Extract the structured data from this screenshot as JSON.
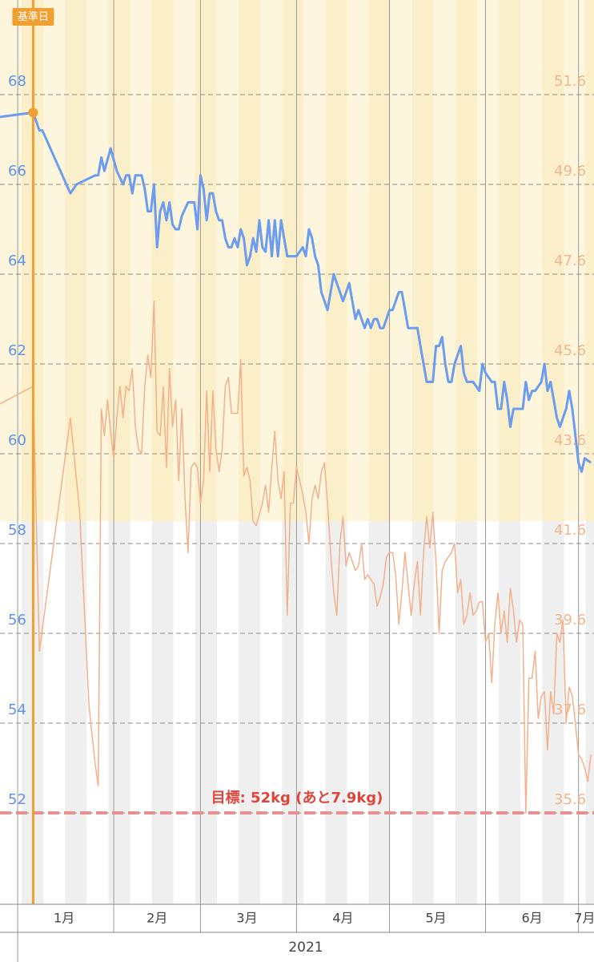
{
  "chart_data": {
    "type": "line",
    "ylim": [
      50,
      70
    ],
    "yticks": [
      52,
      54,
      56,
      58,
      60,
      62,
      64,
      66,
      68
    ],
    "y2lim": [
      33.6,
      53.6
    ],
    "y2ticks": [
      35.6,
      37.6,
      39.6,
      41.6,
      43.6,
      45.6,
      47.6,
      49.6,
      51.6
    ],
    "xlim": [
      -5.7,
      186
    ],
    "xticks": [
      {
        "value": 15,
        "label": "1月"
      },
      {
        "value": 45,
        "label": "2月"
      },
      {
        "value": 74,
        "label": "3月"
      },
      {
        "value": 105,
        "label": "4月"
      },
      {
        "value": 135,
        "label": "5月"
      },
      {
        "value": 166,
        "label": "6月"
      },
      {
        "value": 183,
        "label": "7月"
      }
    ],
    "month_lines": [
      0,
      31,
      59,
      90,
      120,
      151,
      181
    ],
    "x_group_label": "2021",
    "grid": true,
    "highlight_ylim": [
      58.5,
      70
    ],
    "reference": {
      "x": 5,
      "label": "基準日"
    },
    "goal": {
      "value": 52,
      "label": "目標: 52kg (あと7.9kg)"
    },
    "series": [
      {
        "color": "#6b9cf0",
        "axis": "y",
        "x": [
          -6,
          5,
          7,
          8,
          17,
          19,
          25,
          26,
          27,
          28,
          30,
          32,
          34,
          35,
          36,
          37,
          38,
          40,
          41,
          42,
          43,
          44,
          45,
          46,
          47,
          48,
          49,
          50,
          51,
          52,
          53,
          55,
          56,
          57,
          58,
          59,
          60,
          61,
          62,
          63,
          64,
          65,
          66,
          67,
          68,
          69,
          70,
          71,
          72,
          73,
          74,
          75,
          76,
          77,
          78,
          79,
          80,
          81,
          82,
          83,
          84,
          85,
          86,
          87,
          88,
          89,
          90,
          92,
          93,
          94,
          95,
          96,
          97,
          98,
          99,
          100,
          101,
          102,
          103,
          104,
          105,
          107,
          108,
          109,
          110,
          111,
          112,
          113,
          114,
          115,
          116,
          117,
          118,
          119,
          120,
          121,
          122,
          123,
          124,
          126,
          127,
          128,
          129,
          130,
          131,
          132,
          133,
          134,
          135,
          136,
          137,
          138,
          139,
          140,
          141,
          142,
          143,
          144,
          145,
          146,
          147,
          149,
          150,
          151,
          153,
          154,
          155,
          156,
          157,
          158,
          159,
          160,
          162,
          163,
          164,
          165,
          166,
          167,
          169,
          170,
          171,
          172,
          174,
          175,
          176,
          177,
          178,
          179,
          180,
          181,
          182,
          183,
          185
        ],
        "values": [
          67.5,
          67.6,
          67.2,
          67.2,
          65.8,
          66.0,
          66.2,
          66.2,
          66.6,
          66.3,
          66.8,
          66.3,
          66.0,
          66.2,
          66.2,
          65.8,
          66.2,
          66.2,
          65.9,
          65.4,
          65.4,
          66.0,
          64.6,
          65.4,
          65.6,
          65.2,
          65.6,
          65.1,
          65.0,
          65.0,
          65.3,
          65.6,
          65.6,
          65.6,
          65.0,
          66.2,
          65.9,
          65.2,
          65.8,
          65.8,
          65.4,
          65.2,
          65.2,
          64.8,
          64.6,
          64.6,
          64.8,
          64.6,
          65.0,
          64.8,
          64.2,
          64.4,
          64.8,
          64.5,
          65.2,
          64.6,
          64.5,
          65.2,
          64.4,
          65.2,
          64.4,
          65.2,
          64.8,
          64.4,
          64.4,
          64.4,
          64.4,
          64.6,
          64.4,
          65.0,
          64.8,
          64.4,
          64.2,
          63.6,
          63.4,
          63.2,
          63.6,
          64.0,
          63.8,
          63.6,
          63.4,
          63.8,
          63.4,
          63.0,
          63.2,
          63.0,
          62.8,
          63.0,
          62.8,
          63.0,
          63.0,
          62.8,
          62.8,
          63.0,
          63.2,
          63.2,
          63.4,
          63.6,
          63.6,
          62.8,
          62.8,
          62.8,
          62.8,
          62.4,
          62.0,
          61.6,
          61.6,
          61.6,
          62.4,
          62.4,
          62.6,
          62.0,
          61.6,
          61.6,
          62.0,
          62.2,
          62.4,
          61.8,
          61.6,
          61.6,
          61.6,
          61.4,
          62.0,
          61.8,
          61.6,
          61.6,
          61.0,
          61.0,
          61.6,
          61.2,
          60.6,
          61.0,
          61.0,
          61.0,
          61.6,
          61.2,
          61.4,
          61.4,
          61.6,
          62.0,
          61.4,
          61.6,
          60.8,
          60.6,
          60.8,
          61.0,
          61.4,
          61.0,
          60.4,
          59.8,
          59.6,
          59.9,
          59.8
        ]
      },
      {
        "color": "#f4b08a",
        "axis": "y2",
        "x": [
          -6,
          5,
          7,
          17,
          20,
          23,
          25,
          26,
          27,
          28,
          29,
          30,
          31,
          32,
          33,
          34,
          35,
          36,
          37,
          38,
          39,
          40,
          41,
          42,
          43,
          44,
          45,
          46,
          47,
          48,
          49,
          50,
          51,
          52,
          53,
          54,
          55,
          56,
          57,
          58,
          59,
          60,
          61,
          62,
          63,
          64,
          65,
          66,
          67,
          68,
          69,
          70,
          71,
          72,
          73,
          74,
          75,
          76,
          77,
          79,
          80,
          81,
          82,
          83,
          84,
          85,
          86,
          87,
          88,
          89,
          90,
          91,
          92,
          93,
          94,
          95,
          96,
          97,
          98,
          99,
          100,
          101,
          102,
          103,
          104,
          105,
          106,
          107,
          109,
          110,
          111,
          112,
          113,
          114,
          115,
          116,
          117,
          118,
          119,
          120,
          121,
          122,
          123,
          124,
          125,
          126,
          127,
          128,
          129,
          130,
          131,
          132,
          133,
          134,
          135,
          136,
          137,
          138,
          140,
          141,
          142,
          143,
          144,
          145,
          146,
          147,
          148,
          149,
          150,
          151,
          152,
          153,
          154,
          155,
          156,
          157,
          158,
          159,
          160,
          161,
          162,
          163,
          164,
          165,
          166,
          167,
          168,
          169,
          170,
          171,
          172,
          173,
          174,
          175,
          176,
          177,
          178,
          179,
          180,
          181,
          182,
          183,
          184,
          185
        ],
        "values": [
          44.7,
          45.1,
          39.2,
          44.4,
          42.3,
          38.0,
          36.7,
          36.2,
          44.6,
          44.0,
          44.8,
          44.1,
          43.5,
          44.4,
          45.1,
          44.4,
          45.1,
          45.0,
          45.5,
          44.2,
          43.7,
          43.6,
          45.1,
          45.8,
          45.3,
          47.0,
          44.1,
          44.0,
          45.1,
          43.3,
          45.5,
          44.2,
          44.8,
          43.0,
          44.6,
          42.6,
          41.4,
          43.3,
          43.4,
          43.3,
          42.5,
          43.0,
          45.0,
          43.2,
          45.0,
          43.7,
          43.2,
          43.7,
          45.1,
          45.3,
          44.5,
          44.5,
          44.5,
          45.7,
          43.1,
          43.3,
          43.0,
          42.1,
          42.0,
          42.5,
          42.9,
          42.3,
          43.3,
          44.1,
          43.0,
          42.6,
          43.2,
          40.0,
          42.5,
          42.5,
          43.3,
          43.0,
          42.7,
          42.3,
          41.6,
          42.6,
          42.9,
          42.6,
          43.2,
          43.4,
          42.5,
          41.4,
          40.5,
          40.0,
          41.6,
          42.2,
          41.1,
          41.4,
          41.0,
          41.1,
          41.6,
          40.8,
          40.9,
          40.8,
          40.7,
          40.2,
          40.4,
          40.7,
          41.3,
          41.4,
          41.4,
          40.9,
          39.8,
          40.5,
          41.4,
          40.7,
          40.0,
          40.7,
          41.2,
          40.0,
          41.4,
          42.2,
          41.5,
          42.3,
          41.2,
          39.6,
          41.0,
          41.2,
          41.4,
          41.6,
          40.5,
          40.8,
          39.8,
          40.0,
          40.5,
          40.0,
          40.1,
          40.3,
          40.3,
          39.4,
          39.6,
          38.5,
          39.8,
          40.5,
          39.6,
          40.1,
          39.4,
          40.6,
          40.1,
          39.4,
          39.9,
          39.8,
          35.6,
          38.6,
          38.6,
          39.2,
          37.7,
          38.2,
          38.3,
          37.0,
          38.3,
          37.8,
          39.6,
          39.4,
          39.9,
          37.6,
          38.4,
          38.2,
          37.6,
          36.9,
          36.8,
          36.6,
          36.3,
          36.9
        ]
      }
    ]
  }
}
